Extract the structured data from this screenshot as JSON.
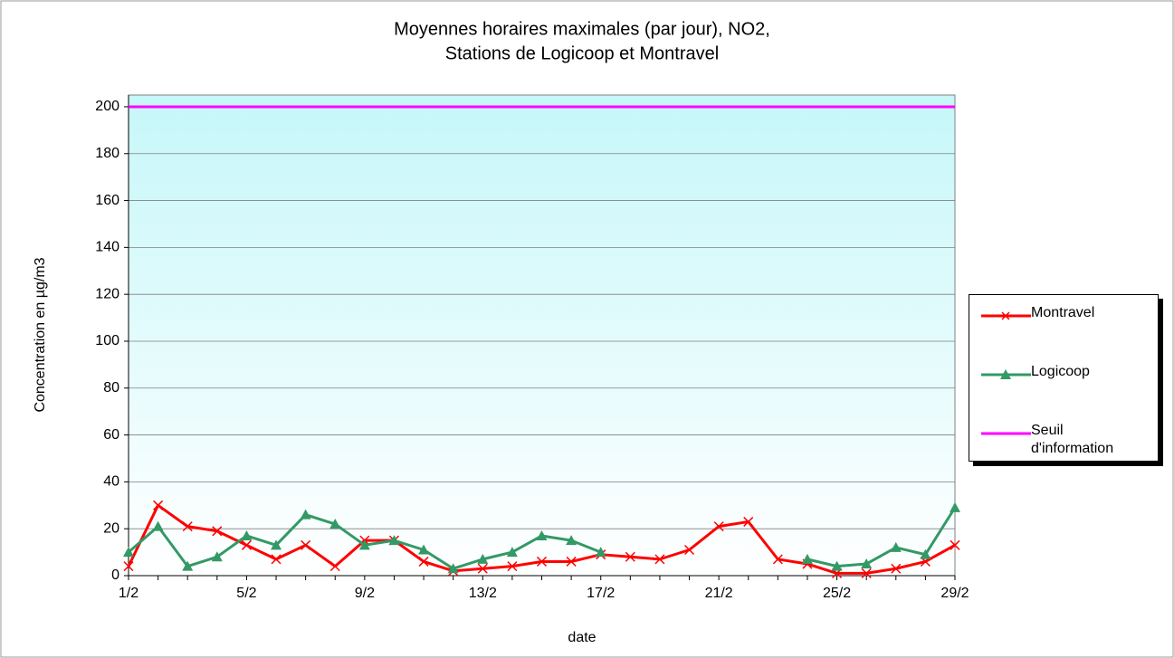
{
  "chart_data": {
    "type": "line",
    "title": [
      "Moyennes horaires maximales (par jour), NO2,",
      "Stations de Logicoop et Montravel"
    ],
    "x_label": "date",
    "y_label": "Concentration en µg/m3",
    "categories": [
      "1/2",
      null,
      null,
      null,
      "5/2",
      null,
      null,
      null,
      "9/2",
      null,
      null,
      null,
      "13/2",
      null,
      null,
      null,
      "17/2",
      null,
      null,
      null,
      "21/2",
      null,
      null,
      null,
      "25/2",
      null,
      null,
      null,
      "29/2"
    ],
    "ylim": [
      0,
      205
    ],
    "yticks": [
      0,
      20,
      40,
      60,
      80,
      100,
      120,
      140,
      160,
      180,
      200
    ],
    "grid": true,
    "legend": "right",
    "series": [
      {
        "name": "Montravel",
        "color": "#ff0000",
        "marker": "x",
        "values": [
          4,
          30,
          21,
          19,
          13,
          7,
          13,
          4,
          15,
          15,
          6,
          2,
          3,
          4,
          6,
          6,
          9,
          8,
          7,
          11,
          21,
          23,
          7,
          5,
          1,
          1,
          3,
          6,
          13
        ]
      },
      {
        "name": "Logicoop",
        "color": "#339966",
        "marker": "triangle",
        "values": [
          10,
          21,
          4,
          8,
          17,
          13,
          26,
          22,
          13,
          15,
          11,
          3,
          7,
          10,
          17,
          15,
          10,
          null,
          null,
          null,
          null,
          null,
          null,
          7,
          4,
          5,
          12,
          9,
          29
        ]
      },
      {
        "name": "Seuil d'information",
        "color": "#ff00ff",
        "marker": "none",
        "values": [
          200,
          200,
          200,
          200,
          200,
          200,
          200,
          200,
          200,
          200,
          200,
          200,
          200,
          200,
          200,
          200,
          200,
          200,
          200,
          200,
          200,
          200,
          200,
          200,
          200,
          200,
          200,
          200,
          200
        ]
      }
    ]
  }
}
